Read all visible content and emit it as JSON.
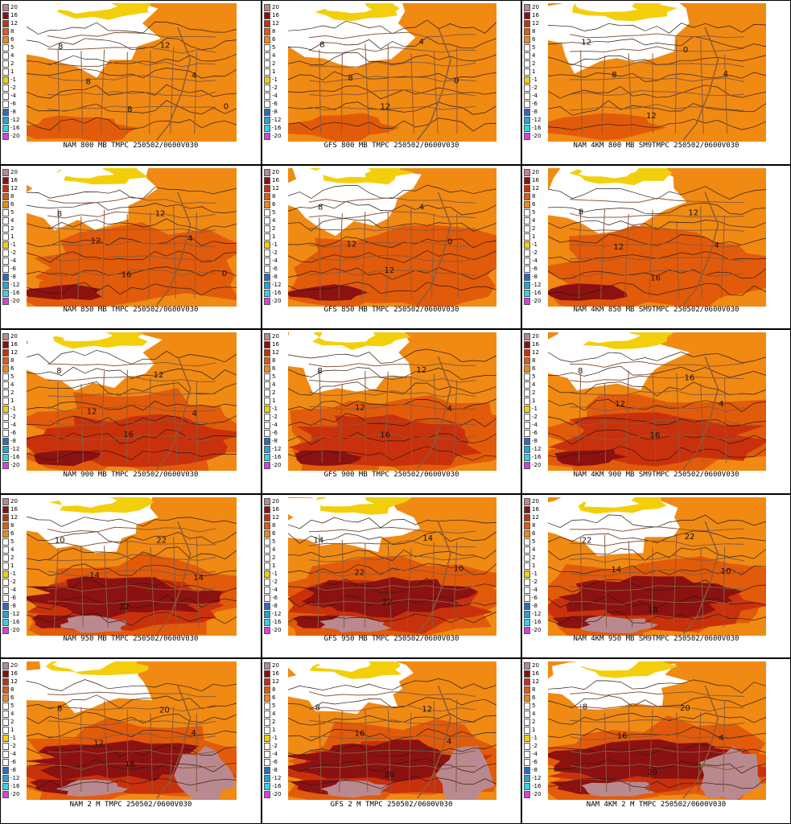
{
  "legend": {
    "ticks": [
      "20",
      "16",
      "12",
      "8",
      "6",
      "5",
      "4",
      "2",
      "1",
      "-1",
      "-2",
      "-4",
      "-6",
      "-8",
      "-12",
      "-16",
      "-20"
    ],
    "colors": [
      "#b9898f",
      "#8c1111",
      "#c9310c",
      "#e25b0a",
      "#f08a13",
      "#ffffff",
      "#ffffff",
      "#ffffff",
      "#ffffff",
      "#f3cf0b",
      "#ffffff",
      "#ffffff",
      "#ffffff",
      "#2f6bbf",
      "#22a6d2",
      "#34d3e4",
      "#d640e6"
    ]
  },
  "palette": {
    "pink": "#b9898f",
    "darkred": "#8c1111",
    "red": "#c9310c",
    "orange": "#e25b0a",
    "lightorange": "#f08a13",
    "yellow": "#f3cf0b",
    "border": "#8b5a3c"
  },
  "panels": [
    {
      "caption": "NAM 800 MB TMPC 250502/0600V030",
      "warmth": 1,
      "labels": [
        "8",
        "8",
        "8",
        "12",
        "4",
        "0"
      ]
    },
    {
      "caption": "GFS 800 MB TMPC 250502/0600V030",
      "warmth": 1,
      "labels": [
        "8",
        "8",
        "12",
        "4",
        "0"
      ]
    },
    {
      "caption": "NAM 4KM 800 MB SM9TMPC 250502/0600V030",
      "warmth": 1,
      "labels": [
        "12",
        "8",
        "12",
        "0",
        "4"
      ]
    },
    {
      "caption": "NAM 850 MB TMPC 250502/0600V030",
      "warmth": 2,
      "labels": [
        "8",
        "12",
        "16",
        "12",
        "4",
        "0"
      ]
    },
    {
      "caption": "GFS 850 MB TMPC 250502/0600V030",
      "warmth": 2,
      "labels": [
        "8",
        "12",
        "12",
        "4",
        "0"
      ]
    },
    {
      "caption": "NAM 4KM 850 MB SM9TMPC 250502/0600V030",
      "warmth": 2,
      "labels": [
        "8",
        "12",
        "16",
        "12",
        "4"
      ]
    },
    {
      "caption": "NAM 900 MB TMPC 250502/0600V030",
      "warmth": 3,
      "labels": [
        "8",
        "12",
        "16",
        "12",
        "4"
      ]
    },
    {
      "caption": "GFS 900 MB TMPC 250502/0600V030",
      "warmth": 3,
      "labels": [
        "8",
        "12",
        "16",
        "12",
        "4"
      ]
    },
    {
      "caption": "NAM 4KM 900 MB SM9TMPC 250502/0600V030",
      "warmth": 3,
      "labels": [
        "8",
        "12",
        "16",
        "16",
        "4"
      ]
    },
    {
      "caption": "NAM 950 MB TMPC 250502/0600V030",
      "warmth": 4,
      "labels": [
        "10",
        "14",
        "22",
        "22",
        "14"
      ]
    },
    {
      "caption": "GFS 950 MB TMPC 250502/0600V030",
      "warmth": 4,
      "labels": [
        "14",
        "22",
        "22",
        "14",
        "10"
      ]
    },
    {
      "caption": "NAM 4KM 950 MB SM9TMPC 250502/0600V030",
      "warmth": 4,
      "labels": [
        "22",
        "14",
        "18",
        "22",
        "10"
      ]
    },
    {
      "caption": "NAM 2 M TMPC 250502/0600V030",
      "warmth": 5,
      "labels": [
        "8",
        "12",
        "16",
        "20",
        "4"
      ]
    },
    {
      "caption": "GFS 2 M TMPC 250502/0600V030",
      "warmth": 5,
      "labels": [
        "8",
        "16",
        "20",
        "12",
        "4"
      ]
    },
    {
      "caption": "NAM 4KM 2 M TMPC 250502/0600V030",
      "warmth": 5,
      "labels": [
        "8",
        "16",
        "20",
        "20",
        "4"
      ]
    }
  ]
}
